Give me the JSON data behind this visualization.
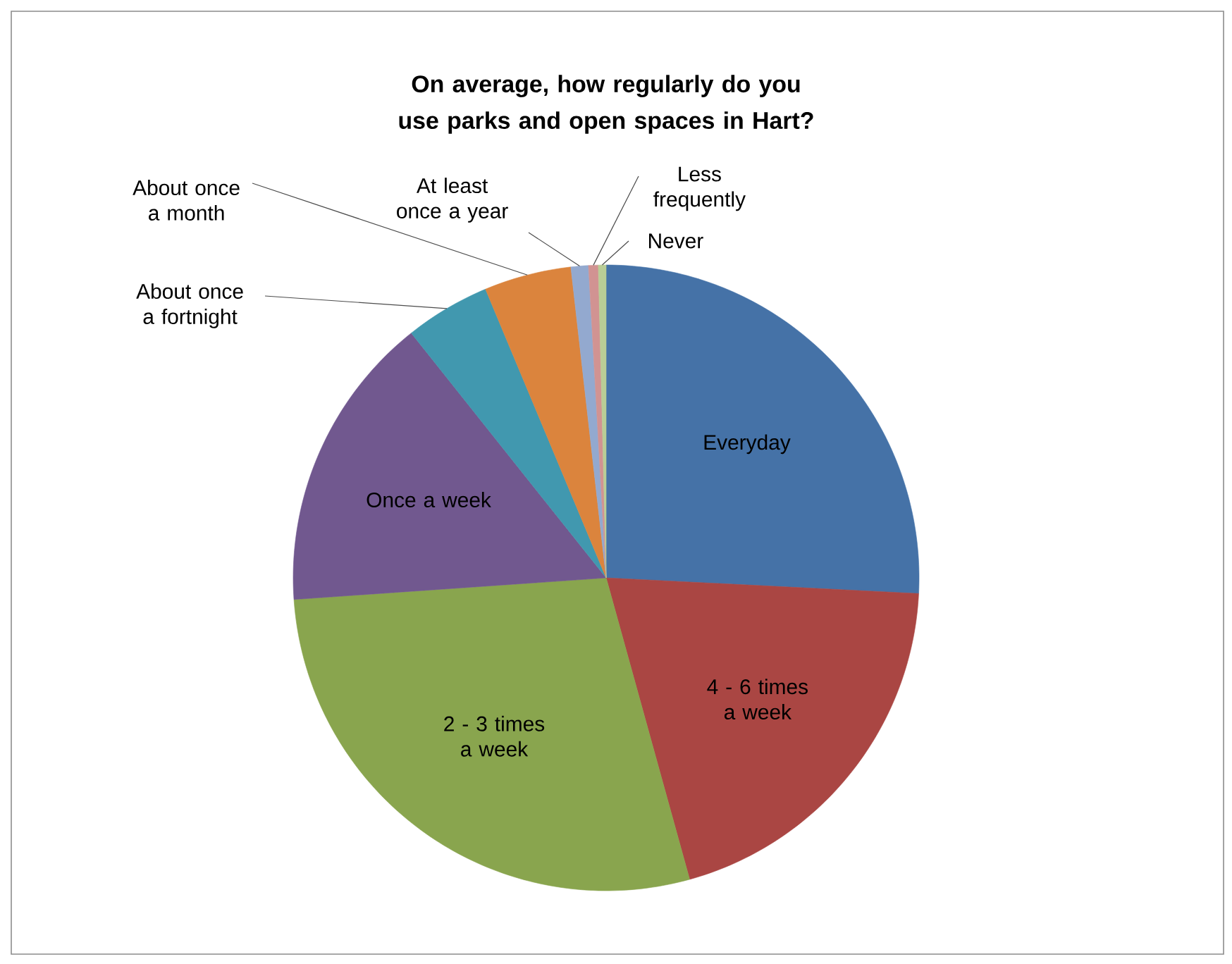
{
  "chart_data": {
    "type": "pie",
    "title": "On average, how regularly do you use parks and open spaces in Hart?",
    "categories": [
      "Everyday",
      "4 - 6 times a week",
      "2 - 3 times a week",
      "Once a week",
      "About once a fortnight",
      "About once a month",
      "At least once a year",
      "Less frequently",
      "Never"
    ],
    "values": [
      25.8,
      19.9,
      28.2,
      15.4,
      4.4,
      4.5,
      0.9,
      0.5,
      0.4
    ],
    "colors": [
      "#4572a7",
      "#aa4643",
      "#89a54e",
      "#71588f",
      "#4198af",
      "#db843d",
      "#93a9cf",
      "#d19392",
      "#b9cd96"
    ]
  }
}
